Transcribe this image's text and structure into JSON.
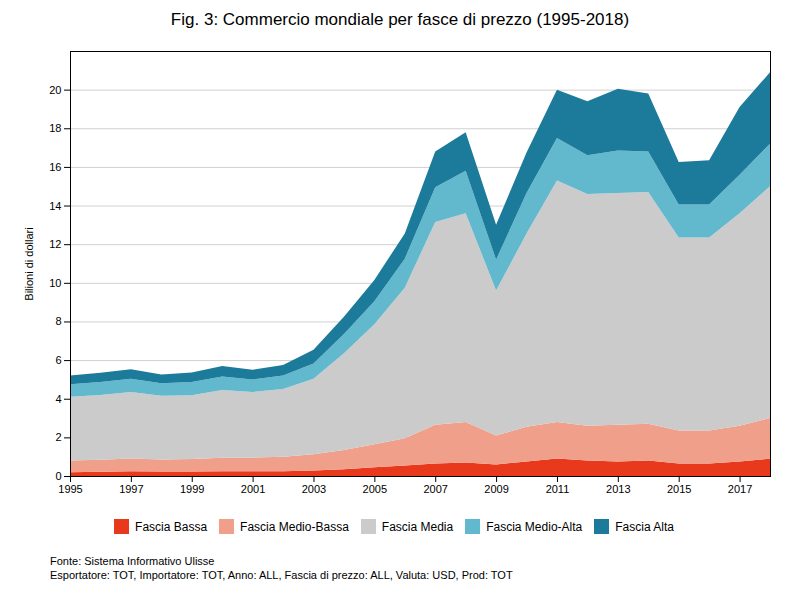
{
  "chart_data": {
    "type": "area",
    "stacked": true,
    "title": "Fig. 3: Commercio mondiale per fasce di prezzo (1995-2018)",
    "ylabel": "Bilioni di dollari",
    "x": [
      1995,
      1996,
      1997,
      1998,
      1999,
      2000,
      2001,
      2002,
      2003,
      2004,
      2005,
      2006,
      2007,
      2008,
      2009,
      2010,
      2011,
      2012,
      2013,
      2014,
      2015,
      2016,
      2017,
      2018
    ],
    "series": [
      {
        "name": "Fascia Bassa",
        "color": "#e8391c",
        "values": [
          0.2,
          0.22,
          0.25,
          0.23,
          0.23,
          0.25,
          0.25,
          0.25,
          0.28,
          0.35,
          0.45,
          0.55,
          0.65,
          0.7,
          0.6,
          0.75,
          0.9,
          0.8,
          0.75,
          0.8,
          0.65,
          0.65,
          0.75,
          0.9
        ]
      },
      {
        "name": "Fascia Medio-Bassa",
        "color": "#f0a08a",
        "values": [
          0.6,
          0.62,
          0.65,
          0.62,
          0.65,
          0.7,
          0.7,
          0.75,
          0.85,
          1.0,
          1.2,
          1.4,
          2.0,
          2.1,
          1.5,
          1.8,
          1.9,
          1.8,
          1.9,
          1.9,
          1.7,
          1.7,
          1.85,
          2.1
        ]
      },
      {
        "name": "Fascia Media",
        "color": "#cbcbcb",
        "values": [
          3.3,
          3.35,
          3.45,
          3.3,
          3.3,
          3.5,
          3.4,
          3.5,
          3.9,
          5.0,
          6.2,
          7.8,
          10.5,
          10.8,
          7.5,
          10.0,
          12.5,
          12.0,
          12.0,
          12.0,
          10.0,
          10.0,
          11.0,
          12.0
        ]
      },
      {
        "name": "Fascia Medio-Alta",
        "color": "#62b8cc",
        "values": [
          0.65,
          0.68,
          0.68,
          0.65,
          0.68,
          0.7,
          0.65,
          0.7,
          0.8,
          1.0,
          1.2,
          1.5,
          1.8,
          2.2,
          1.6,
          2.1,
          2.2,
          2.0,
          2.2,
          2.1,
          1.7,
          1.7,
          2.0,
          2.2
        ]
      },
      {
        "name": "Fascia Alta",
        "color": "#1c7a9a",
        "values": [
          0.45,
          0.48,
          0.5,
          0.45,
          0.5,
          0.55,
          0.5,
          0.55,
          0.7,
          0.9,
          1.1,
          1.3,
          1.85,
          2.0,
          1.8,
          2.1,
          2.5,
          2.8,
          3.2,
          3.0,
          2.2,
          2.3,
          3.5,
          3.7
        ]
      }
    ],
    "xlim": [
      1995,
      2018
    ],
    "xticks": [
      1995,
      1997,
      1999,
      2001,
      2003,
      2005,
      2007,
      2009,
      2011,
      2013,
      2015,
      2017
    ],
    "ylim": [
      0,
      22
    ],
    "yticks": [
      0,
      2,
      4,
      6,
      8,
      10,
      12,
      14,
      16,
      18,
      20
    ],
    "grid": true,
    "legend": "bottom",
    "annotations": [
      "Fonte: Sistema Informativo Ulisse",
      "Esportatore: TOT, Importatore: TOT, Anno: ALL, Fascia di prezzo: ALL, Valuta: USD, Prod: TOT"
    ]
  }
}
